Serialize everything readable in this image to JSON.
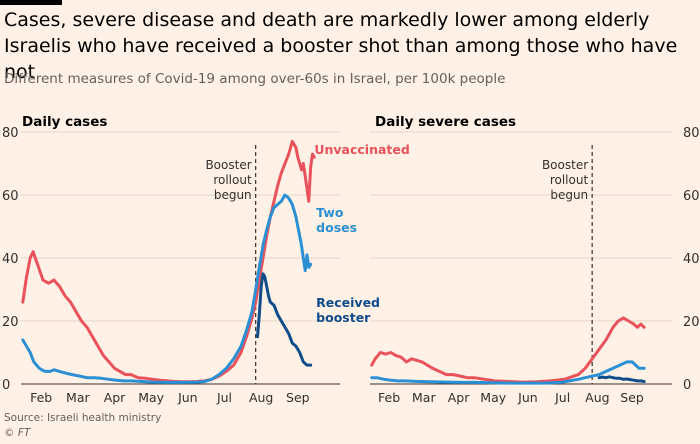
{
  "title": "Cases, severe disease and death are markedly lower among elderly Israelis who have received a booster shot than among those who have not",
  "subtitle": "Different measures of Covid-19 among over-60s in Israel, per 100k people",
  "source": "Source: Israeli health ministry",
  "copyright": "© FT",
  "colors": {
    "unvaccinated": "#e9525b",
    "two_doses": "#2b8fd4",
    "booster": "#0f4c8a",
    "grid": "#e3d6c9",
    "text": "#33302e"
  },
  "chart_data": [
    {
      "type": "line",
      "title": "Daily cases",
      "ylim": [
        0,
        80
      ],
      "yticks": [
        "0",
        "20",
        "40",
        "60",
        "80"
      ],
      "xlim": [
        1,
        9.7
      ],
      "xticks": [
        {
          "label": "Feb",
          "x": 1.55
        },
        {
          "label": "Mar",
          "x": 2.55
        },
        {
          "label": "Apr",
          "x": 3.55
        },
        {
          "label": "May",
          "x": 4.55
        },
        {
          "label": "Jun",
          "x": 5.55
        },
        {
          "label": "Jul",
          "x": 6.55
        },
        {
          "label": "Aug",
          "x": 7.55
        },
        {
          "label": "Sep",
          "x": 8.55
        }
      ],
      "annotation": {
        "lines": [
          "Booster",
          "rollout",
          "begun"
        ],
        "x": 7.4
      },
      "series": [
        {
          "name": "Unvaccinated",
          "label_lines": [
            "Unvaccinated"
          ],
          "color_key": "unvaccinated",
          "label_pos": {
            "x": 9.0,
            "y": 73
          },
          "points": [
            [
              1.05,
              26
            ],
            [
              1.15,
              34
            ],
            [
              1.25,
              40
            ],
            [
              1.33,
              42
            ],
            [
              1.45,
              38
            ],
            [
              1.6,
              33
            ],
            [
              1.75,
              32
            ],
            [
              1.9,
              33
            ],
            [
              2.05,
              31
            ],
            [
              2.2,
              28
            ],
            [
              2.35,
              26
            ],
            [
              2.5,
              23
            ],
            [
              2.65,
              20
            ],
            [
              2.8,
              18
            ],
            [
              2.95,
              15
            ],
            [
              3.1,
              12
            ],
            [
              3.25,
              9
            ],
            [
              3.4,
              7
            ],
            [
              3.55,
              5
            ],
            [
              3.7,
              4
            ],
            [
              3.85,
              3
            ],
            [
              4.0,
              3
            ],
            [
              4.2,
              2
            ],
            [
              4.4,
              1.8
            ],
            [
              4.6,
              1.5
            ],
            [
              4.8,
              1.2
            ],
            [
              5.0,
              1
            ],
            [
              5.2,
              0.8
            ],
            [
              5.4,
              0.7
            ],
            [
              5.6,
              0.7
            ],
            [
              5.8,
              0.8
            ],
            [
              6.0,
              1
            ],
            [
              6.2,
              1.5
            ],
            [
              6.4,
              2.5
            ],
            [
              6.6,
              4
            ],
            [
              6.8,
              6
            ],
            [
              7.0,
              10
            ],
            [
              7.15,
              15
            ],
            [
              7.3,
              21
            ],
            [
              7.4,
              26
            ],
            [
              7.5,
              33
            ],
            [
              7.6,
              40
            ],
            [
              7.7,
              47
            ],
            [
              7.8,
              53
            ],
            [
              7.9,
              58
            ],
            [
              8.0,
              63
            ],
            [
              8.1,
              67
            ],
            [
              8.2,
              70
            ],
            [
              8.3,
              73
            ],
            [
              8.4,
              77
            ],
            [
              8.5,
              75
            ],
            [
              8.55,
              72
            ],
            [
              8.6,
              70
            ],
            [
              8.65,
              68
            ],
            [
              8.7,
              70
            ],
            [
              8.75,
              66
            ],
            [
              8.8,
              62
            ],
            [
              8.85,
              58
            ],
            [
              8.9,
              69
            ],
            [
              8.95,
              73
            ],
            [
              9.0,
              72
            ]
          ]
        },
        {
          "name": "Two doses",
          "label_lines": [
            "Two",
            "doses"
          ],
          "color_key": "two_doses",
          "label_pos": {
            "x": 9.05,
            "y": 53
          },
          "points": [
            [
              1.05,
              14
            ],
            [
              1.15,
              12
            ],
            [
              1.25,
              10
            ],
            [
              1.35,
              7
            ],
            [
              1.5,
              5
            ],
            [
              1.65,
              4
            ],
            [
              1.8,
              4
            ],
            [
              1.9,
              4.5
            ],
            [
              2.05,
              4
            ],
            [
              2.2,
              3.5
            ],
            [
              2.4,
              3
            ],
            [
              2.6,
              2.5
            ],
            [
              2.8,
              2
            ],
            [
              3.0,
              2
            ],
            [
              3.2,
              1.8
            ],
            [
              3.4,
              1.5
            ],
            [
              3.6,
              1.2
            ],
            [
              3.8,
              1
            ],
            [
              4.0,
              1
            ],
            [
              4.3,
              0.8
            ],
            [
              4.6,
              0.6
            ],
            [
              5.0,
              0.5
            ],
            [
              5.4,
              0.5
            ],
            [
              5.8,
              0.6
            ],
            [
              6.0,
              0.8
            ],
            [
              6.2,
              1.5
            ],
            [
              6.4,
              3
            ],
            [
              6.6,
              5
            ],
            [
              6.8,
              8
            ],
            [
              7.0,
              12
            ],
            [
              7.15,
              17
            ],
            [
              7.3,
              23
            ],
            [
              7.4,
              30
            ],
            [
              7.5,
              37
            ],
            [
              7.6,
              44
            ],
            [
              7.7,
              49
            ],
            [
              7.8,
              53
            ],
            [
              7.9,
              56
            ],
            [
              8.0,
              57
            ],
            [
              8.1,
              58
            ],
            [
              8.2,
              60
            ],
            [
              8.3,
              59
            ],
            [
              8.4,
              57
            ],
            [
              8.5,
              53
            ],
            [
              8.55,
              50
            ],
            [
              8.6,
              47
            ],
            [
              8.65,
              44
            ],
            [
              8.7,
              40
            ],
            [
              8.75,
              36
            ],
            [
              8.8,
              41
            ],
            [
              8.85,
              37
            ],
            [
              8.9,
              38
            ]
          ]
        },
        {
          "name": "Received booster",
          "label_lines": [
            "Received",
            "booster"
          ],
          "color_key": "booster",
          "label_pos": {
            "x": 9.05,
            "y": 24.5
          },
          "points": [
            [
              7.45,
              15
            ],
            [
              7.5,
              22
            ],
            [
              7.55,
              31
            ],
            [
              7.6,
              35
            ],
            [
              7.65,
              34
            ],
            [
              7.7,
              31
            ],
            [
              7.75,
              28
            ],
            [
              7.8,
              26
            ],
            [
              7.9,
              25
            ],
            [
              8.0,
              22
            ],
            [
              8.1,
              20
            ],
            [
              8.2,
              18
            ],
            [
              8.3,
              16
            ],
            [
              8.4,
              13
            ],
            [
              8.5,
              12
            ],
            [
              8.6,
              10
            ],
            [
              8.7,
              7
            ],
            [
              8.8,
              6
            ],
            [
              8.9,
              6
            ]
          ]
        }
      ]
    },
    {
      "type": "line",
      "title": "Daily severe cases",
      "ylim": [
        0,
        80
      ],
      "yticks": [
        "0",
        "20",
        "40",
        "60",
        "80"
      ],
      "xlim": [
        1,
        9.7
      ],
      "xticks": [
        {
          "label": "Feb",
          "x": 1.55
        },
        {
          "label": "Mar",
          "x": 2.55
        },
        {
          "label": "Apr",
          "x": 3.55
        },
        {
          "label": "May",
          "x": 4.55
        },
        {
          "label": "Jun",
          "x": 5.55
        },
        {
          "label": "Jul",
          "x": 6.55
        },
        {
          "label": "Aug",
          "x": 7.55
        },
        {
          "label": "Sep",
          "x": 8.55
        }
      ],
      "annotation": {
        "lines": [
          "Booster",
          "rollout",
          "begun"
        ],
        "x": 7.4
      },
      "series": [
        {
          "name": "Unvaccinated",
          "color_key": "unvaccinated",
          "points": [
            [
              1.05,
              6
            ],
            [
              1.15,
              8
            ],
            [
              1.3,
              10
            ],
            [
              1.45,
              9.5
            ],
            [
              1.6,
              10
            ],
            [
              1.75,
              9
            ],
            [
              1.9,
              8.5
            ],
            [
              2.05,
              7
            ],
            [
              2.2,
              8
            ],
            [
              2.35,
              7.5
            ],
            [
              2.5,
              7
            ],
            [
              2.65,
              6
            ],
            [
              2.8,
              5
            ],
            [
              3.0,
              4
            ],
            [
              3.2,
              3
            ],
            [
              3.4,
              3
            ],
            [
              3.6,
              2.5
            ],
            [
              3.8,
              2
            ],
            [
              4.0,
              2
            ],
            [
              4.3,
              1.5
            ],
            [
              4.6,
              1
            ],
            [
              5.0,
              0.8
            ],
            [
              5.4,
              0.6
            ],
            [
              5.8,
              0.7
            ],
            [
              6.2,
              1
            ],
            [
              6.6,
              1.5
            ],
            [
              7.0,
              3
            ],
            [
              7.2,
              5
            ],
            [
              7.4,
              8
            ],
            [
              7.6,
              11
            ],
            [
              7.8,
              14
            ],
            [
              8.0,
              18
            ],
            [
              8.15,
              20
            ],
            [
              8.3,
              21
            ],
            [
              8.45,
              20
            ],
            [
              8.6,
              19
            ],
            [
              8.7,
              18
            ],
            [
              8.8,
              19
            ],
            [
              8.9,
              18
            ]
          ]
        },
        {
          "name": "Two doses",
          "color_key": "two_doses",
          "points": [
            [
              1.05,
              2
            ],
            [
              1.2,
              2
            ],
            [
              1.4,
              1.5
            ],
            [
              1.6,
              1.2
            ],
            [
              1.8,
              1
            ],
            [
              2.0,
              1
            ],
            [
              2.4,
              0.8
            ],
            [
              2.8,
              0.7
            ],
            [
              3.2,
              0.6
            ],
            [
              3.6,
              0.5
            ],
            [
              4.0,
              0.5
            ],
            [
              4.5,
              0.4
            ],
            [
              5.0,
              0.3
            ],
            [
              5.5,
              0.3
            ],
            [
              6.0,
              0.3
            ],
            [
              6.5,
              0.5
            ],
            [
              7.0,
              1.5
            ],
            [
              7.2,
              2
            ],
            [
              7.4,
              2.5
            ],
            [
              7.6,
              3
            ],
            [
              7.8,
              4
            ],
            [
              8.0,
              5
            ],
            [
              8.2,
              6
            ],
            [
              8.4,
              7
            ],
            [
              8.55,
              7
            ],
            [
              8.65,
              6
            ],
            [
              8.75,
              5
            ],
            [
              8.9,
              5
            ]
          ]
        },
        {
          "name": "Received booster",
          "color_key": "booster",
          "points": [
            [
              7.6,
              2
            ],
            [
              7.7,
              2.2
            ],
            [
              7.8,
              2
            ],
            [
              7.9,
              2.3
            ],
            [
              8.0,
              2
            ],
            [
              8.1,
              1.8
            ],
            [
              8.2,
              1.8
            ],
            [
              8.3,
              1.5
            ],
            [
              8.4,
              1.6
            ],
            [
              8.5,
              1.4
            ],
            [
              8.6,
              1.2
            ],
            [
              8.7,
              1
            ],
            [
              8.8,
              1
            ],
            [
              8.9,
              0.8
            ]
          ]
        }
      ]
    }
  ]
}
